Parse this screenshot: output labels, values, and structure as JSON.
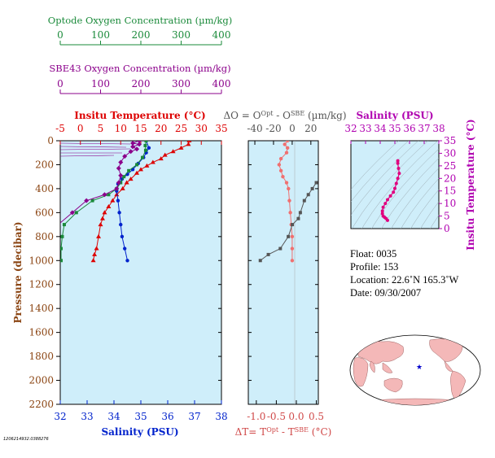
{
  "chart_data": [
    {
      "type": "line",
      "title": "Optode Oxygen Concentration (µm/kg)",
      "xlabel": "Optode Oxygen Concentration (µm/kg)",
      "xlim": [
        0,
        400
      ],
      "xticks": [
        0,
        100,
        200,
        300,
        400
      ],
      "color": "#1a8a3a"
    },
    {
      "type": "line",
      "title": "SBE43 Oxygen Concentration (µm/kg)",
      "xlabel": "SBE43 Oxygen Concentration (µm/kg)",
      "xlim": [
        0,
        400
      ],
      "xticks": [
        0,
        100,
        200,
        300,
        400
      ],
      "color": "#8b008b"
    },
    {
      "type": "line",
      "top_label": "Insitu Temperature (°C)",
      "bottom_label": "Salinity (PSU)",
      "ylabel": "Pressure (decibar)",
      "temp_ticks": [
        -5,
        0,
        5,
        10,
        15,
        20,
        25,
        30,
        35
      ],
      "sal_ticks": [
        32,
        33,
        34,
        35,
        36,
        37,
        38
      ],
      "yticks": [
        0,
        200,
        400,
        600,
        800,
        1000,
        1200,
        1400,
        1600,
        1800,
        2000,
        2200
      ],
      "series": [
        {
          "name": "temperature",
          "color": "#dd0000",
          "marker": "triangle",
          "points": [
            [
              27,
              0
            ],
            [
              26.8,
              30
            ],
            [
              25,
              60
            ],
            [
              23,
              90
            ],
            [
              21,
              120
            ],
            [
              20,
              150
            ],
            [
              18,
              180
            ],
            [
              16.5,
              210
            ],
            [
              15,
              240
            ],
            [
              14,
              270
            ],
            [
              12.5,
              320
            ],
            [
              11.5,
              350
            ],
            [
              10.5,
              400
            ],
            [
              9,
              450
            ],
            [
              8,
              500
            ],
            [
              7,
              550
            ],
            [
              6,
              600
            ],
            [
              5.5,
              650
            ],
            [
              5,
              700
            ],
            [
              4.5,
              800
            ],
            [
              4,
              900
            ],
            [
              3.5,
              950
            ],
            [
              3.2,
              1000
            ]
          ]
        },
        {
          "name": "salinity",
          "color": "#0022cc",
          "marker": "circle",
          "points": [
            [
              35.2,
              0
            ],
            [
              35.3,
              60
            ],
            [
              35.2,
              100
            ],
            [
              35.1,
              140
            ],
            [
              34.9,
              190
            ],
            [
              34.7,
              240
            ],
            [
              34.5,
              280
            ],
            [
              34.3,
              320
            ],
            [
              34.15,
              360
            ],
            [
              34.1,
              420
            ],
            [
              34.15,
              500
            ],
            [
              34.2,
              600
            ],
            [
              34.25,
              700
            ],
            [
              34.3,
              800
            ],
            [
              34.4,
              900
            ],
            [
              34.5,
              1000
            ]
          ]
        },
        {
          "name": "optode-oxygen",
          "color": "#1a8a3a",
          "marker": "square",
          "points": [
            [
              213,
              0
            ],
            [
              211,
              40
            ],
            [
              212,
              80
            ],
            [
              204,
              140
            ],
            [
              190,
              200
            ],
            [
              170,
              250
            ],
            [
              158,
              300
            ],
            [
              150,
              350
            ],
            [
              140,
              400
            ],
            [
              120,
              450
            ],
            [
              80,
              500
            ],
            [
              40,
              600
            ],
            [
              10,
              700
            ],
            [
              5,
              800
            ],
            [
              2,
              900
            ],
            [
              2,
              1000
            ]
          ]
        },
        {
          "name": "sbe43-oxygen",
          "color": "#8b008b",
          "marker": "diamond",
          "points": [
            [
              196,
              0
            ],
            [
              180,
              20
            ],
            [
              196,
              30
            ],
            [
              180,
              50
            ],
            [
              190,
              70
            ],
            [
              175,
              90
            ],
            [
              160,
              130
            ],
            [
              150,
              180
            ],
            [
              145,
              230
            ],
            [
              150,
              290
            ],
            [
              145,
              350
            ],
            [
              140,
              400
            ],
            [
              110,
              450
            ],
            [
              65,
              500
            ],
            [
              30,
              600
            ],
            [
              -5,
              700
            ],
            [
              -15,
              800
            ],
            [
              -15,
              900
            ],
            [
              -10,
              950
            ],
            [
              -5,
              1000
            ]
          ]
        }
      ]
    },
    {
      "type": "line",
      "top_label": "ΔO = O^Opt - O^SBE (µm/kg)",
      "bottom_label": "ΔT= T^Opt - T^SBE (°C)",
      "do_ticks": [
        -40,
        -20,
        0,
        20
      ],
      "dt_ticks": [
        -1.0,
        -0.5,
        0.0,
        0.5
      ],
      "series": [
        {
          "name": "delta-oxygen",
          "color": "#f07070",
          "marker": "circle",
          "points": [
            [
              -5,
              0
            ],
            [
              -8,
              30
            ],
            [
              -5,
              60
            ],
            [
              -6,
              100
            ],
            [
              -12,
              150
            ],
            [
              -14,
              200
            ],
            [
              -12,
              250
            ],
            [
              -10,
              300
            ],
            [
              -6,
              350
            ],
            [
              -4,
              400
            ],
            [
              -3,
              500
            ],
            [
              -2,
              600
            ],
            [
              -1,
              700
            ],
            [
              0,
              800
            ],
            [
              0,
              900
            ],
            [
              0,
              1000
            ]
          ]
        },
        {
          "name": "delta-temperature",
          "color": "#555555",
          "marker": "square",
          "points": [
            [
              0.5,
              350
            ],
            [
              0.4,
              400
            ],
            [
              0.3,
              450
            ],
            [
              0.2,
              500
            ],
            [
              0.1,
              600
            ],
            [
              0.05,
              650
            ],
            [
              -0.1,
              700
            ],
            [
              -0.2,
              800
            ],
            [
              -0.4,
              900
            ],
            [
              -0.7,
              950
            ],
            [
              -0.9,
              1000
            ]
          ]
        }
      ]
    },
    {
      "type": "scatter",
      "top_label": "Salinity (PSU)",
      "right_label": "Insitu Temperature (°C)",
      "xticks": [
        32,
        33,
        34,
        35,
        36,
        37,
        38
      ],
      "yticks": [
        0,
        5,
        10,
        15,
        20,
        25,
        30,
        35
      ],
      "xlim": [
        32,
        38
      ],
      "ylim": [
        0,
        35
      ],
      "series": [
        {
          "name": "ts-profile",
          "color": "#e0007e",
          "points": [
            [
              35.2,
              27
            ],
            [
              35.2,
              26
            ],
            [
              35.25,
              24
            ],
            [
              35.3,
              22
            ],
            [
              35.2,
              20
            ],
            [
              35.1,
              18
            ],
            [
              35.0,
              16
            ],
            [
              34.9,
              14.5
            ],
            [
              34.7,
              13
            ],
            [
              34.5,
              11.5
            ],
            [
              34.35,
              10
            ],
            [
              34.2,
              8.5
            ],
            [
              34.15,
              7
            ],
            [
              34.15,
              6
            ],
            [
              34.2,
              5
            ],
            [
              34.3,
              4.5
            ],
            [
              34.4,
              4
            ],
            [
              34.5,
              3.3
            ]
          ]
        }
      ]
    }
  ],
  "info": {
    "float": "Float:  0035",
    "profile": "Profile:  153",
    "location": "Location:  22.6˚N  165.3˚W",
    "date": "Date:  09/30/2007"
  },
  "footer_id": "1206214932.0388276"
}
